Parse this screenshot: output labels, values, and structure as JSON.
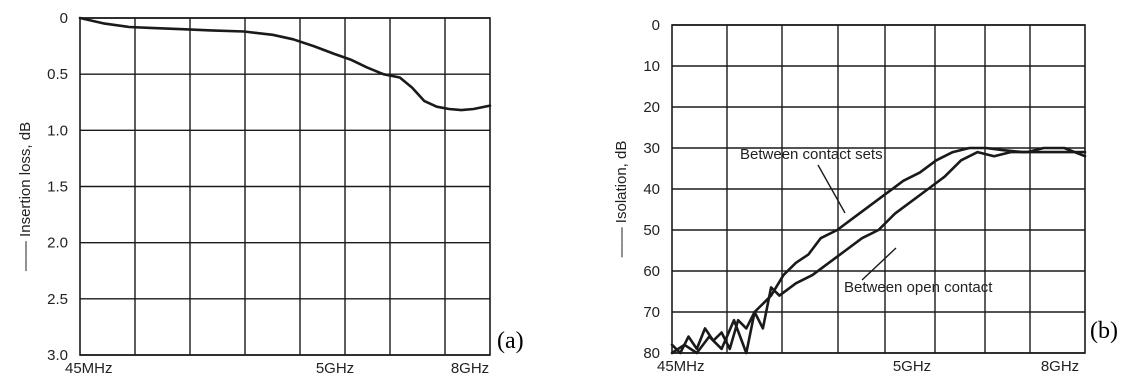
{
  "chart_data": [
    {
      "type": "line",
      "panel_label": "(a)",
      "ylabel": "Insertion loss, dB",
      "xlabel": "",
      "title": "",
      "x_tick_labels": [
        "45MHz",
        "5GHz",
        "8GHz"
      ],
      "y_tick_labels": [
        "0",
        "0.5",
        "1.0",
        "1.5",
        "2.0",
        "2.5",
        "3.0"
      ],
      "ylim": [
        3.0,
        0
      ],
      "y_inverted": true,
      "grid": true,
      "series": [
        {
          "x_fraction": [
            0.0,
            0.06,
            0.12,
            0.18,
            0.25,
            0.32,
            0.4,
            0.47,
            0.52,
            0.57,
            0.62,
            0.66,
            0.7,
            0.74,
            0.78,
            0.81,
            0.84,
            0.87,
            0.9,
            0.93,
            0.96,
            1.0
          ],
          "values": [
            0.0,
            0.05,
            0.08,
            0.09,
            0.1,
            0.11,
            0.12,
            0.15,
            0.19,
            0.25,
            0.32,
            0.37,
            0.44,
            0.5,
            0.53,
            0.62,
            0.74,
            0.79,
            0.81,
            0.82,
            0.81,
            0.78
          ]
        }
      ]
    },
    {
      "type": "line",
      "panel_label": "(b)",
      "ylabel": "Isolation, dB",
      "xlabel": "",
      "title": "",
      "x_tick_labels": [
        "45MHz",
        "5GHz",
        "8GHz"
      ],
      "y_tick_labels": [
        "0",
        "10",
        "20",
        "30",
        "40",
        "50",
        "60",
        "70",
        "80"
      ],
      "ylim": [
        80,
        0
      ],
      "y_inverted": true,
      "grid": true,
      "annotations": [
        "Between contact sets",
        "Between open contact"
      ],
      "series": [
        {
          "name": "Between contact sets",
          "x_fraction": [
            0.0,
            0.02,
            0.04,
            0.06,
            0.08,
            0.1,
            0.12,
            0.14,
            0.16,
            0.18,
            0.2,
            0.22,
            0.24,
            0.27,
            0.3,
            0.33,
            0.36,
            0.4,
            0.44,
            0.48,
            0.52,
            0.56,
            0.6,
            0.64,
            0.68,
            0.72,
            0.76,
            0.8,
            0.85,
            0.9,
            0.95,
            1.0
          ],
          "values": [
            78,
            80,
            76,
            79,
            74,
            77,
            75,
            79,
            72,
            74,
            70,
            68,
            66,
            61,
            58,
            56,
            52,
            50,
            47,
            44,
            41,
            38,
            36,
            33,
            31,
            30,
            30,
            30.5,
            31,
            31,
            31,
            31
          ]
        },
        {
          "name": "Between open contact",
          "x_fraction": [
            0.0,
            0.03,
            0.06,
            0.09,
            0.12,
            0.15,
            0.18,
            0.2,
            0.22,
            0.24,
            0.26,
            0.3,
            0.34,
            0.38,
            0.42,
            0.46,
            0.5,
            0.54,
            0.58,
            0.62,
            0.66,
            0.7,
            0.74,
            0.78,
            0.82,
            0.86,
            0.9,
            0.95,
            1.0
          ],
          "values": [
            80,
            78,
            80,
            76,
            79,
            72,
            80,
            70,
            74,
            64,
            66,
            63,
            61,
            58,
            55,
            52,
            50,
            46,
            43,
            40,
            37,
            33,
            31,
            32,
            31,
            31,
            30,
            30,
            32
          ]
        }
      ]
    }
  ]
}
